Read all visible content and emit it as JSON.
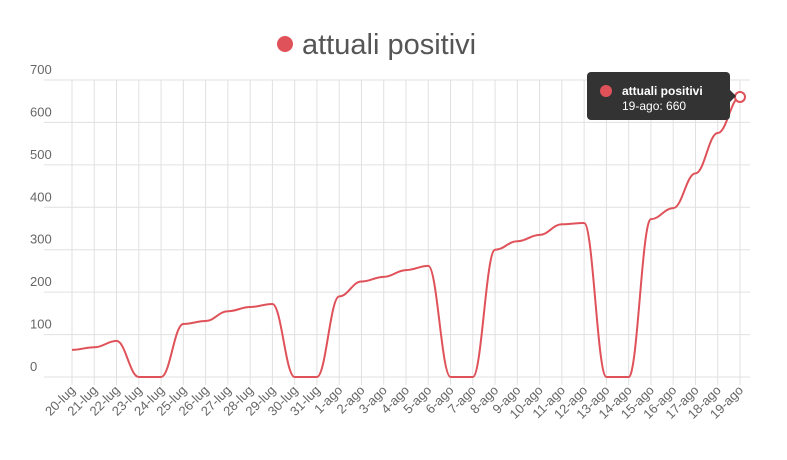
{
  "chart_data": {
    "type": "line",
    "categories": [
      "20-lug",
      "21-lug",
      "22-lug",
      "23-lug",
      "24-lug",
      "25-lug",
      "26-lug",
      "27-lug",
      "28-lug",
      "29-lug",
      "30-lug",
      "31-lug",
      "1-ago",
      "2-ago",
      "3-ago",
      "4-ago",
      "5-ago",
      "6-ago",
      "7-ago",
      "8-ago",
      "9-ago",
      "10-ago",
      "11-ago",
      "12-ago",
      "13-ago",
      "14-ago",
      "15-ago",
      "16-ago",
      "17-ago",
      "18-ago",
      "19-ago"
    ],
    "series": [
      {
        "name": "attuali positivi",
        "color": "#e0525a",
        "values": [
          64,
          70,
          85,
          0,
          0,
          125,
          132,
          155,
          165,
          172,
          0,
          0,
          190,
          225,
          236,
          252,
          262,
          0,
          0,
          300,
          320,
          335,
          360,
          363,
          0,
          0,
          372,
          398,
          480,
          575,
          660
        ]
      }
    ],
    "ylim": [
      0,
      700
    ],
    "yticks": [
      0,
      100,
      200,
      300,
      400,
      500,
      600,
      700
    ],
    "grid": true,
    "tooltip_label": "19-ago: 660"
  }
}
